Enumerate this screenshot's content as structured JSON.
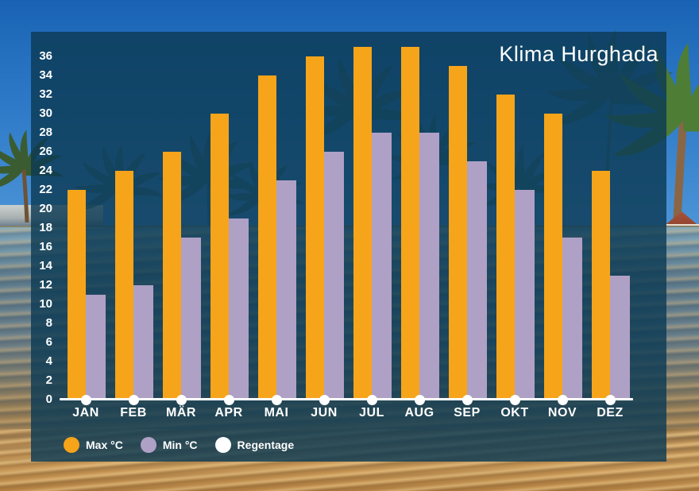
{
  "title": "Klima Hurghada",
  "colors": {
    "max_temp": "#F6A41A",
    "min_temp": "#AFA0C6",
    "rain_days": "#FFFFFF",
    "panel_overlay": "rgba(12,59,84,0.82)",
    "axis": "#FFFFFF",
    "text": "#FFFFFF"
  },
  "chart_data": {
    "type": "bar",
    "title": "Klima Hurghada",
    "categories": [
      "JAN",
      "FEB",
      "MÄR",
      "APR",
      "MAI",
      "JUN",
      "JUL",
      "AUG",
      "SEP",
      "OKT",
      "NOV",
      "DEZ"
    ],
    "series": [
      {
        "id": "max-temp",
        "name": "Max °C",
        "type": "bar",
        "color": "#F6A41A",
        "values": [
          22,
          24,
          26,
          30,
          34,
          36,
          37,
          37,
          35,
          32,
          30,
          24
        ]
      },
      {
        "id": "min-temp",
        "name": "Min °C",
        "type": "bar",
        "color": "#AFA0C6",
        "values": [
          11,
          12,
          17,
          19,
          23,
          26,
          28,
          28,
          25,
          22,
          17,
          13
        ]
      },
      {
        "id": "rain-days",
        "name": "Regentage",
        "type": "point",
        "color": "#FFFFFF",
        "values": [
          0,
          0,
          0,
          0,
          0,
          0,
          0,
          0,
          0,
          0,
          0,
          0
        ]
      }
    ],
    "ylim": [
      0,
      36
    ],
    "ytick_step": 2,
    "grid": false,
    "legend_position": "bottom-left"
  }
}
